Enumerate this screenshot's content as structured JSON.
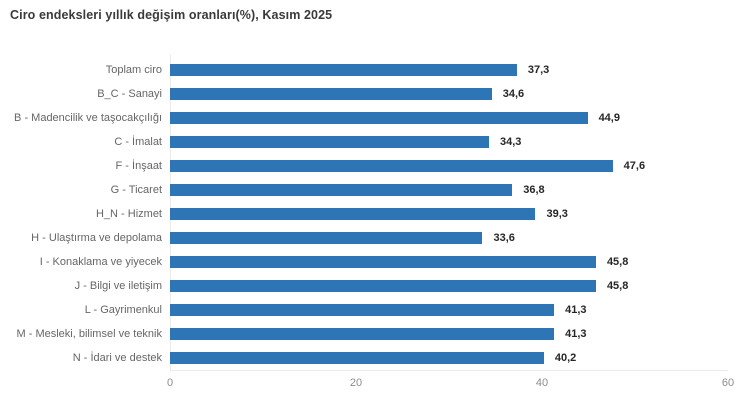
{
  "title": "Ciro endeksleri yıllık değişim oranları(%), Kasım 2025",
  "chart_data": {
    "type": "bar",
    "orientation": "horizontal",
    "title": "Ciro endeksleri yıllık değişim oranları(%), Kasım 2025",
    "categories": [
      "Toplam ciro",
      "B_C - Sanayi",
      "B - Madencilik ve taşocakçılığı",
      "C - İmalat",
      "F - İnşaat",
      "G - Ticaret",
      "H_N - Hizmet",
      "H - Ulaştırma ve depolama",
      "I - Konaklama ve yiyecek",
      "J - Bilgi ve iletişim",
      "L - Gayrimenkul",
      "M - Mesleki, bilimsel ve teknik",
      "N - İdari ve destek"
    ],
    "values": [
      37.3,
      34.6,
      44.9,
      34.3,
      47.6,
      36.8,
      39.3,
      33.6,
      45.8,
      45.8,
      41.3,
      41.3,
      40.2
    ],
    "value_labels": [
      "37,3",
      "34,6",
      "44,9",
      "34,3",
      "47,6",
      "36,8",
      "39,3",
      "33,6",
      "45,8",
      "45,8",
      "41,3",
      "41,3",
      "40,2"
    ],
    "xlabel": "",
    "ylabel": "",
    "xlim": [
      0,
      60
    ],
    "xticks": [
      0,
      20,
      40,
      60
    ],
    "xtick_labels": [
      "0",
      "20",
      "40",
      "60"
    ],
    "grid": false,
    "legend": false,
    "bar_color": "#2e75b6",
    "axis_line_color": "#f1e9e9",
    "category_label_color": "#666666",
    "value_label_color": "#262626",
    "tick_label_color": "#8c8c8c",
    "title_color": "#3a3a3a",
    "background_color": "#ffffff"
  }
}
